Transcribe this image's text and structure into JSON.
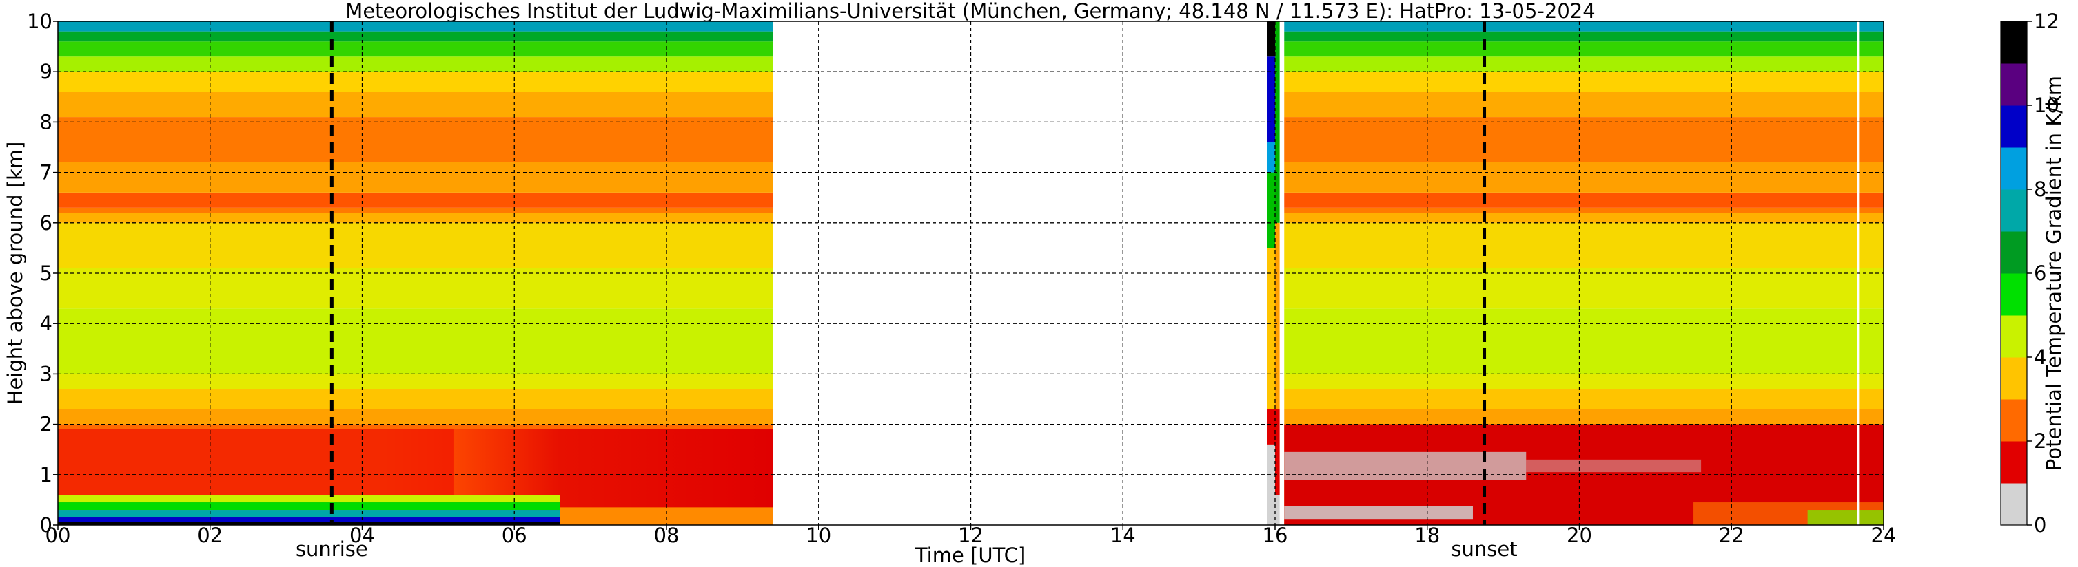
{
  "chart_data": {
    "type": "heatmap",
    "title": "Meteorologisches Institut der Ludwig-Maximilians-Universität (München, Germany; 48.148 N / 11.573 E):    HatPro: 13-05-2024",
    "xlabel": "Time [UTC]",
    "ylabel": "Height above ground [km]",
    "xlim": [
      0,
      24
    ],
    "ylim": [
      0,
      10
    ],
    "x_ticks": [
      {
        "value": 0,
        "label": "00"
      },
      {
        "value": 2,
        "label": "02"
      },
      {
        "value": 4,
        "label": "04"
      },
      {
        "value": 6,
        "label": "06"
      },
      {
        "value": 8,
        "label": "08"
      },
      {
        "value": 10,
        "label": "10"
      },
      {
        "value": 12,
        "label": "12"
      },
      {
        "value": 14,
        "label": "14"
      },
      {
        "value": 16,
        "label": "16"
      },
      {
        "value": 18,
        "label": "18"
      },
      {
        "value": 20,
        "label": "20"
      },
      {
        "value": 22,
        "label": "22"
      },
      {
        "value": 24,
        "label": "24"
      }
    ],
    "y_ticks": [
      {
        "value": 0,
        "label": "0"
      },
      {
        "value": 1,
        "label": "1"
      },
      {
        "value": 2,
        "label": "2"
      },
      {
        "value": 3,
        "label": "3"
      },
      {
        "value": 4,
        "label": "4"
      },
      {
        "value": 5,
        "label": "5"
      },
      {
        "value": 6,
        "label": "6"
      },
      {
        "value": 7,
        "label": "7"
      },
      {
        "value": 8,
        "label": "8"
      },
      {
        "value": 9,
        "label": "9"
      },
      {
        "value": 10,
        "label": "10"
      }
    ],
    "grid": true,
    "markers": [
      {
        "label": "sunrise",
        "time": 3.6
      },
      {
        "label": "sunset",
        "time": 18.75
      }
    ],
    "data_segments": [
      {
        "start": 0.0,
        "end": 9.4
      },
      {
        "start": 15.9,
        "end": 16.0
      },
      {
        "start": 16.12,
        "end": 24.0
      }
    ],
    "colorbar": {
      "label": "Potential Temperature Gradient in K/km",
      "min": 0,
      "max": 12,
      "ticks": [
        {
          "value": 0,
          "label": "0"
        },
        {
          "value": 2,
          "label": "2"
        },
        {
          "value": 4,
          "label": "4"
        },
        {
          "value": 6,
          "label": "6"
        },
        {
          "value": 8,
          "label": "8"
        },
        {
          "value": 10,
          "label": "10"
        },
        {
          "value": 12,
          "label": "12"
        }
      ],
      "colors": [
        "#d3d3d3",
        "#e10000",
        "#ff6a00",
        "#ffc400",
        "#c9f200",
        "#00e000",
        "#009b22",
        "#00a8a8",
        "#00a0e0",
        "#0000c8",
        "#5a0080",
        "#000000"
      ]
    }
  }
}
